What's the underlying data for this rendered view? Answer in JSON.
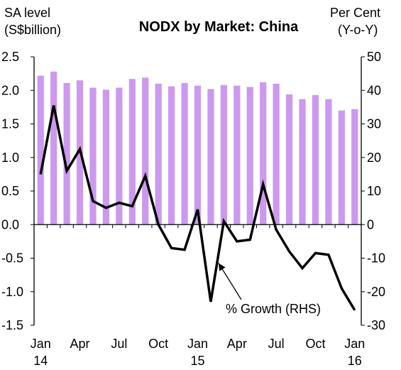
{
  "chart_data": {
    "type": "bar+line",
    "title": "NODX by Market: China",
    "left_axis_label": [
      "SA level",
      "(S$billion)"
    ],
    "right_axis_label": [
      "Per Cent",
      "(Y-o-Y)"
    ],
    "left_ylim": [
      -1.5,
      2.5
    ],
    "left_ticks": [
      "2.5",
      "2.0",
      "1.5",
      "1.0",
      "0.5",
      "0.0",
      "-0.5",
      "-1.0",
      "-1.5"
    ],
    "right_ylim": [
      -30,
      50
    ],
    "right_ticks": [
      "50",
      "40",
      "30",
      "20",
      "10",
      "0",
      "-10",
      "-20",
      "-30"
    ],
    "x_tick_labels": [
      {
        "index": 0,
        "label": "Jan",
        "sub": "14"
      },
      {
        "index": 3,
        "label": "Apr",
        "sub": ""
      },
      {
        "index": 6,
        "label": "Jul",
        "sub": ""
      },
      {
        "index": 9,
        "label": "Oct",
        "sub": ""
      },
      {
        "index": 12,
        "label": "Jan",
        "sub": "15"
      },
      {
        "index": 15,
        "label": "Apr",
        "sub": ""
      },
      {
        "index": 18,
        "label": "Jul",
        "sub": ""
      },
      {
        "index": 21,
        "label": "Oct",
        "sub": ""
      },
      {
        "index": 24,
        "label": "Jan",
        "sub": "16"
      }
    ],
    "bar_series": {
      "name": "SA level",
      "color": "#cc99ee",
      "values": [
        2.22,
        2.28,
        2.11,
        2.15,
        2.04,
        2.01,
        2.04,
        2.17,
        2.19,
        2.1,
        2.06,
        2.11,
        2.07,
        2.02,
        2.08,
        2.07,
        2.05,
        2.12,
        2.1,
        1.94,
        1.87,
        1.93,
        1.87,
        1.7,
        1.72
      ]
    },
    "line_series": {
      "name": "% Growth (RHS)",
      "color": "#000000",
      "values": [
        15.0,
        35.5,
        16.0,
        22.5,
        7.0,
        5.0,
        6.5,
        5.5,
        14.5,
        0.0,
        -7.0,
        -7.5,
        4.5,
        -23.0,
        1.0,
        -5.0,
        -4.5,
        12.0,
        -1.5,
        -8.0,
        -13.0,
        -8.5,
        -9.0,
        -19.0,
        -25.5
      ]
    },
    "annotation": {
      "text": "% Growth (RHS)",
      "arrow_to_index": 13.6,
      "arrow_to_value": -11.5
    }
  }
}
